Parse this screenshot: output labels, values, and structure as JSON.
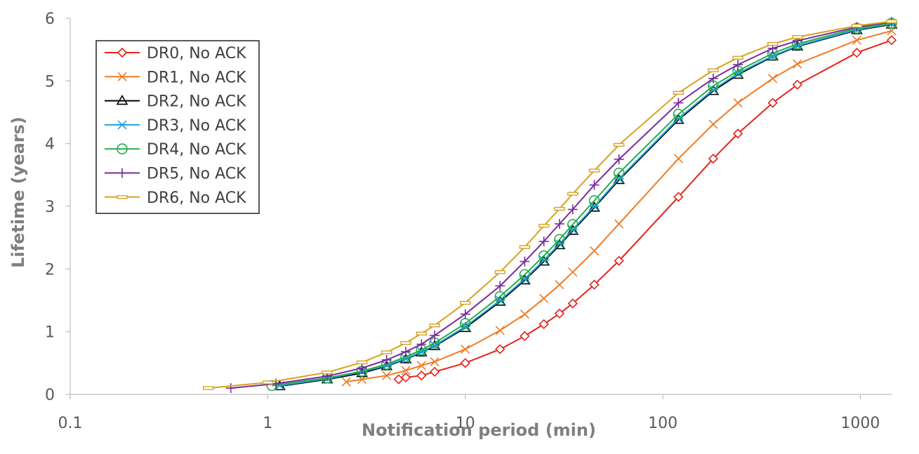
{
  "chart_data": {
    "type": "line",
    "xlabel": "Notification period (min)",
    "ylabel": "Lifetime (years)",
    "x_scale": "log",
    "xlim": [
      0.1,
      1440
    ],
    "ylim": [
      0,
      6
    ],
    "x_ticks": [
      0.1,
      1,
      10,
      100,
      1000
    ],
    "x_tick_labels": [
      "0.1",
      "1",
      "10",
      "100",
      "1000"
    ],
    "y_ticks": [
      0,
      1,
      2,
      3,
      4,
      5,
      6
    ],
    "y_tick_labels": [
      "0",
      "1",
      "2",
      "3",
      "4",
      "5",
      "6"
    ],
    "grid": false,
    "legend_position": "top-left",
    "series": [
      {
        "name": "DR0, No ACK",
        "color": "#e8211a",
        "marker": "diamond",
        "points": [
          [
            4.6,
            0.24
          ],
          [
            5,
            0.27
          ],
          [
            6,
            0.3
          ],
          [
            7,
            0.36
          ],
          [
            10,
            0.5
          ],
          [
            15,
            0.72
          ],
          [
            20,
            0.93
          ],
          [
            25,
            1.12
          ],
          [
            30,
            1.29
          ],
          [
            35,
            1.45
          ],
          [
            45,
            1.75
          ],
          [
            60,
            2.13
          ],
          [
            120,
            3.15
          ],
          [
            180,
            3.76
          ],
          [
            240,
            4.16
          ],
          [
            360,
            4.65
          ],
          [
            480,
            4.94
          ],
          [
            960,
            5.45
          ],
          [
            1440,
            5.65
          ]
        ]
      },
      {
        "name": "DR1, No ACK",
        "color": "#f07b24",
        "marker": "x",
        "points": [
          [
            2.5,
            0.2
          ],
          [
            3,
            0.24
          ],
          [
            4,
            0.3
          ],
          [
            5,
            0.38
          ],
          [
            6,
            0.46
          ],
          [
            7,
            0.52
          ],
          [
            10,
            0.72
          ],
          [
            15,
            1.02
          ],
          [
            20,
            1.28
          ],
          [
            25,
            1.53
          ],
          [
            30,
            1.75
          ],
          [
            35,
            1.95
          ],
          [
            45,
            2.29
          ],
          [
            60,
            2.72
          ],
          [
            120,
            3.76
          ],
          [
            180,
            4.31
          ],
          [
            240,
            4.65
          ],
          [
            360,
            5.04
          ],
          [
            480,
            5.27
          ],
          [
            960,
            5.65
          ],
          [
            1440,
            5.8
          ]
        ]
      },
      {
        "name": "DR2, No ACK",
        "color": "#000000",
        "marker": "triangle",
        "points": [
          [
            1.15,
            0.13
          ],
          [
            2,
            0.24
          ],
          [
            3,
            0.34
          ],
          [
            4,
            0.45
          ],
          [
            5,
            0.56
          ],
          [
            6,
            0.67
          ],
          [
            7,
            0.77
          ],
          [
            10,
            1.06
          ],
          [
            15,
            1.48
          ],
          [
            20,
            1.82
          ],
          [
            25,
            2.12
          ],
          [
            30,
            2.38
          ],
          [
            35,
            2.61
          ],
          [
            45,
            2.98
          ],
          [
            60,
            3.42
          ],
          [
            120,
            4.38
          ],
          [
            180,
            4.84
          ],
          [
            240,
            5.1
          ],
          [
            360,
            5.39
          ],
          [
            480,
            5.55
          ],
          [
            960,
            5.81
          ],
          [
            1440,
            5.9
          ]
        ]
      },
      {
        "name": "DR3, No ACK",
        "color": "#1ca3e0",
        "marker": "asterisk",
        "points": [
          [
            1.15,
            0.14
          ],
          [
            2,
            0.25
          ],
          [
            3,
            0.36
          ],
          [
            4,
            0.46
          ],
          [
            5,
            0.57
          ],
          [
            6,
            0.68
          ],
          [
            7,
            0.78
          ],
          [
            10,
            1.08
          ],
          [
            15,
            1.5
          ],
          [
            20,
            1.84
          ],
          [
            25,
            2.14
          ],
          [
            30,
            2.4
          ],
          [
            35,
            2.63
          ],
          [
            45,
            3.0
          ],
          [
            60,
            3.44
          ],
          [
            120,
            4.4
          ],
          [
            180,
            4.86
          ],
          [
            240,
            5.12
          ],
          [
            360,
            5.4
          ],
          [
            480,
            5.56
          ],
          [
            960,
            5.82
          ],
          [
            1440,
            5.91
          ]
        ]
      },
      {
        "name": "DR4, No ACK",
        "color": "#27ad4a",
        "marker": "circle",
        "points": [
          [
            1.05,
            0.14
          ],
          [
            2,
            0.26
          ],
          [
            3,
            0.37
          ],
          [
            4,
            0.48
          ],
          [
            5,
            0.6
          ],
          [
            6,
            0.71
          ],
          [
            7,
            0.82
          ],
          [
            10,
            1.13
          ],
          [
            15,
            1.56
          ],
          [
            20,
            1.91
          ],
          [
            25,
            2.21
          ],
          [
            30,
            2.47
          ],
          [
            35,
            2.71
          ],
          [
            45,
            3.09
          ],
          [
            60,
            3.53
          ],
          [
            120,
            4.47
          ],
          [
            180,
            4.92
          ],
          [
            240,
            5.16
          ],
          [
            360,
            5.44
          ],
          [
            480,
            5.59
          ],
          [
            960,
            5.84
          ],
          [
            1440,
            5.92
          ]
        ]
      },
      {
        "name": "DR5, No ACK",
        "color": "#7b2a9e",
        "marker": "plus",
        "points": [
          [
            0.65,
            0.1
          ],
          [
            1.1,
            0.17
          ],
          [
            2,
            0.29
          ],
          [
            3,
            0.42
          ],
          [
            4,
            0.55
          ],
          [
            5,
            0.68
          ],
          [
            6,
            0.8
          ],
          [
            7,
            0.94
          ],
          [
            10,
            1.28
          ],
          [
            15,
            1.73
          ],
          [
            20,
            2.12
          ],
          [
            25,
            2.44
          ],
          [
            30,
            2.72
          ],
          [
            35,
            2.95
          ],
          [
            45,
            3.34
          ],
          [
            60,
            3.75
          ],
          [
            120,
            4.65
          ],
          [
            180,
            5.04
          ],
          [
            240,
            5.26
          ],
          [
            360,
            5.52
          ],
          [
            480,
            5.64
          ],
          [
            960,
            5.86
          ],
          [
            1440,
            5.94
          ]
        ]
      },
      {
        "name": "DR6, No ACK",
        "color": "#d7a21e",
        "marker": "dash",
        "points": [
          [
            0.5,
            0.1
          ],
          [
            1,
            0.19
          ],
          [
            2,
            0.35
          ],
          [
            3,
            0.51
          ],
          [
            4,
            0.67
          ],
          [
            5,
            0.82
          ],
          [
            6,
            0.97
          ],
          [
            7,
            1.1
          ],
          [
            10,
            1.46
          ],
          [
            15,
            1.95
          ],
          [
            20,
            2.35
          ],
          [
            25,
            2.69
          ],
          [
            30,
            2.96
          ],
          [
            35,
            3.2
          ],
          [
            45,
            3.57
          ],
          [
            60,
            3.98
          ],
          [
            120,
            4.81
          ],
          [
            180,
            5.17
          ],
          [
            240,
            5.37
          ],
          [
            360,
            5.59
          ],
          [
            480,
            5.7
          ],
          [
            960,
            5.88
          ],
          [
            1440,
            5.95
          ]
        ]
      }
    ]
  }
}
